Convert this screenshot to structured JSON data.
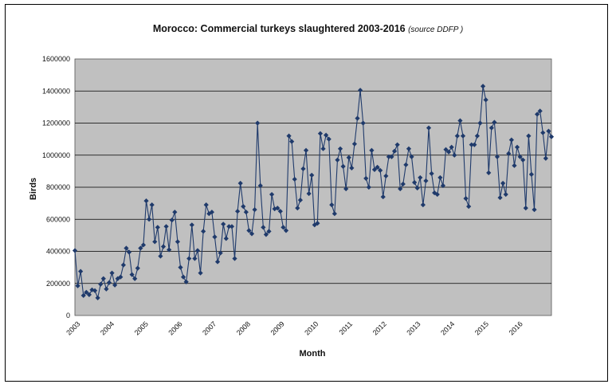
{
  "chart_data": {
    "type": "line",
    "title": "Morocco: Commercial turkeys slaughtered 2003-2016",
    "subtitle": "(source  DDFP )",
    "xlabel": "Month",
    "ylabel": "Birds",
    "ylim": [
      0,
      1600000
    ],
    "yticks": [
      "0",
      "200000",
      "400000",
      "600000",
      "800000",
      "1000000",
      "1200000",
      "1400000",
      "1600000"
    ],
    "xticks": [
      "2003",
      "2004",
      "2005",
      "2006",
      "2007",
      "2008",
      "2009",
      "2010",
      "2011",
      "2012",
      "2013",
      "2014",
      "2015",
      "2016"
    ],
    "grid": true,
    "legend": "none",
    "colors": {
      "line": "#1f3a6b",
      "plot_bg": "#c0c0c0"
    },
    "series": [
      {
        "values": [
          405000,
          185000,
          275000,
          125000,
          145000,
          130000,
          160000,
          155000,
          110000,
          195000,
          230000,
          165000,
          205000,
          265000,
          190000,
          230000,
          240000,
          315000,
          420000,
          395000,
          255000,
          230000,
          295000,
          420000,
          440000,
          715000,
          600000,
          690000,
          460000,
          550000,
          370000,
          430000,
          555000,
          410000,
          595000,
          645000,
          460000,
          300000,
          240000,
          210000,
          355000,
          565000,
          355000,
          405000,
          265000,
          525000,
          690000,
          635000,
          645000,
          490000,
          335000,
          390000,
          570000,
          480000,
          555000,
          555000,
          355000,
          650000,
          825000,
          680000,
          645000,
          530000,
          510000,
          660000,
          1200000,
          810000,
          550000,
          505000,
          525000,
          755000,
          665000,
          670000,
          650000,
          550000,
          530000,
          1120000,
          1085000,
          850000,
          670000,
          720000,
          915000,
          1030000,
          760000,
          875000,
          565000,
          575000,
          1135000,
          1040000,
          1125000,
          1100000,
          690000,
          635000,
          970000,
          1040000,
          930000,
          790000,
          985000,
          920000,
          1070000,
          1230000,
          1405000,
          1200000,
          855000,
          800000,
          1030000,
          910000,
          925000,
          905000,
          740000,
          870000,
          990000,
          990000,
          1025000,
          1065000,
          790000,
          820000,
          940000,
          1040000,
          990000,
          830000,
          795000,
          860000,
          690000,
          840000,
          1170000,
          885000,
          765000,
          755000,
          860000,
          810000,
          1035000,
          1020000,
          1050000,
          1000000,
          1120000,
          1215000,
          1120000,
          730000,
          680000,
          1065000,
          1065000,
          1120000,
          1200000,
          1430000,
          1345000,
          890000,
          1170000,
          1205000,
          990000,
          735000,
          825000,
          755000,
          1010000,
          1095000,
          935000,
          1050000,
          990000,
          970000,
          670000,
          1120000,
          880000,
          660000,
          1255000,
          1275000,
          1140000,
          980000,
          1150000,
          1115000
        ]
      }
    ]
  }
}
